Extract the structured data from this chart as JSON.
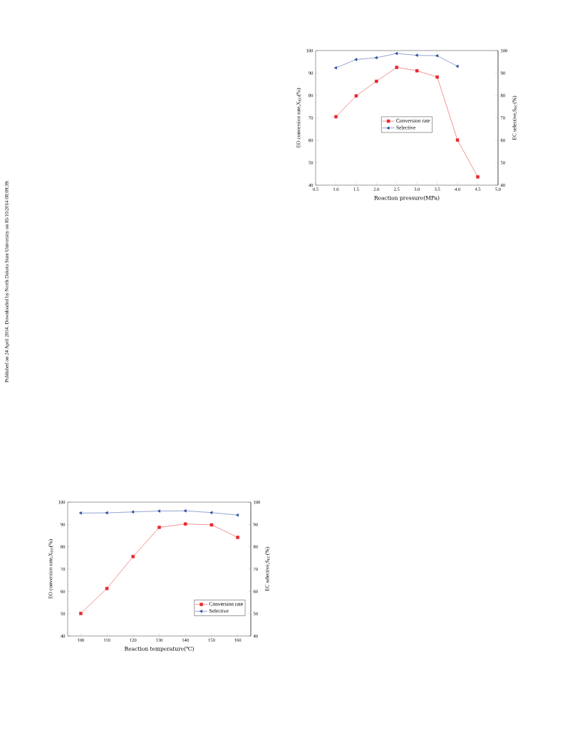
{
  "chart_data": [
    {
      "type": "line",
      "xlabel": "Reaction pressure(MPa)",
      "ylabel": "EO conversion rate,X$_{EO}$(%)",
      "y2label": "EC selective,S$_{EC}$(%)",
      "x": [
        1.0,
        1.5,
        2.0,
        2.5,
        3.0,
        3.5,
        4.0,
        4.5
      ],
      "series": [
        {
          "name": "Conversion rate",
          "color": "#e8262a",
          "marker": "square",
          "values": [
            70.5,
            79.8,
            86.3,
            92.5,
            91.0,
            88.2,
            60.1,
            43.7
          ]
        },
        {
          "name": "Selective",
          "color": "#2b4ba0",
          "marker": "triangle",
          "axis": "y2",
          "values": [
            92.3,
            96.0,
            96.8,
            98.7,
            97.9,
            97.7,
            93.0,
            null
          ]
        }
      ],
      "xlim": [
        0.5,
        5.0
      ],
      "xticks": [
        0.5,
        {
          "value": 1,
          "label": "1.0"
        },
        1.5,
        {
          "value": 2,
          "label": "2.0"
        },
        2.5,
        {
          "value": 3,
          "label": "3.0"
        },
        3.5,
        {
          "value": 4,
          "label": "4.0"
        },
        4.5,
        {
          "value": 5,
          "label": "5.0"
        }
      ],
      "ylim": [
        40,
        100
      ],
      "yticks": [
        40,
        50,
        60,
        70,
        80,
        90,
        100
      ],
      "y2lim": [
        40,
        100
      ],
      "y2ticks": [
        40,
        50,
        60,
        70,
        80,
        90,
        100
      ],
      "legend": "center",
      "grid": false,
      "annotations": [
        "Published on 24 April 2014. Downloaded by North Dakota State University on 05/10/2014 08:09:39."
      ]
    },
    {
      "type": "line",
      "xlabel": "Reaction temperature(℃)",
      "ylabel": "EO conversion rate,X$_{EO}$(%)",
      "y2label": "EC selective,S$_{EC}$(%)",
      "x": [
        100,
        110,
        120,
        130,
        140,
        150,
        160
      ],
      "series": [
        {
          "name": "Conversion rate",
          "color": "#e8262a",
          "marker": "square",
          "values": [
            50.1,
            61.3,
            75.6,
            88.7,
            90.2,
            89.8,
            84.2
          ]
        },
        {
          "name": "Selective",
          "color": "#2b4ba0",
          "marker": "triangle",
          "axis": "y2",
          "values": [
            95.1,
            95.2,
            95.6,
            96.0,
            96.1,
            95.3,
            94.2
          ]
        }
      ],
      "xlim": [
        95,
        165
      ],
      "xticks": [
        100,
        110,
        120,
        130,
        140,
        150,
        160
      ],
      "ylim": [
        40,
        100
      ],
      "yticks": [
        40,
        50,
        60,
        70,
        80,
        90,
        100
      ],
      "y2lim": [
        40,
        100
      ],
      "y2ticks": [
        40,
        50,
        60,
        70,
        80,
        90,
        100
      ],
      "legend": "bottom right",
      "grid": false
    }
  ]
}
